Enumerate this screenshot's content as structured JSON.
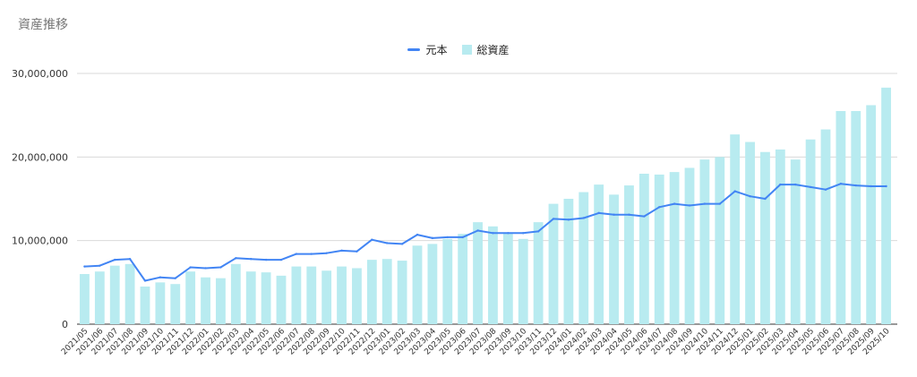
{
  "chart_data": {
    "type": "bar",
    "title": "資産推移",
    "legend_position": "top",
    "grid": true,
    "ylim": [
      0,
      30000000
    ],
    "y_ticks": [
      "0",
      "10,000,000",
      "20,000,000",
      "30,000,000"
    ],
    "categories": [
      "2021/05",
      "2021/06",
      "2021/07",
      "2021/08",
      "2021/09",
      "2021/10",
      "2021/11",
      "2021/12",
      "2022/01",
      "2022/02",
      "2022/03",
      "2022/04",
      "2022/05",
      "2022/06",
      "2022/07",
      "2022/08",
      "2022/09",
      "2022/10",
      "2022/11",
      "2022/12",
      "2023/01",
      "2023/02",
      "2023/03",
      "2023/04",
      "2023/05",
      "2023/06",
      "2023/07",
      "2023/08",
      "2023/09",
      "2023/10",
      "2023/11",
      "2023/12",
      "2024/01",
      "2024/02",
      "2024/03",
      "2024/04",
      "2024/05",
      "2024/06",
      "2024/07",
      "2024/08",
      "2024/09",
      "2024/10",
      "2024/11",
      "2024/12",
      "2025/01",
      "2025/02",
      "2025/03",
      "2025/04",
      "2025/05",
      "2025/06",
      "2025/07",
      "2025/08",
      "2025/09",
      "2025/10"
    ],
    "series": [
      {
        "name": "元本",
        "kind": "line",
        "color": "#4285f4",
        "values": [
          6900000,
          7000000,
          7700000,
          7800000,
          5200000,
          5600000,
          5500000,
          6800000,
          6700000,
          6800000,
          7900000,
          7800000,
          7700000,
          7700000,
          8400000,
          8400000,
          8500000,
          8800000,
          8700000,
          10100000,
          9700000,
          9600000,
          10700000,
          10300000,
          10400000,
          10400000,
          11200000,
          10900000,
          10900000,
          10900000,
          11100000,
          12600000,
          12500000,
          12700000,
          13300000,
          13100000,
          13100000,
          12900000,
          14000000,
          14400000,
          14200000,
          14400000,
          14400000,
          15900000,
          15300000,
          15000000,
          16700000,
          16700000,
          16400000,
          16100000,
          16800000,
          16600000,
          16500000,
          16500000
        ]
      },
      {
        "name": "総資産",
        "kind": "bar",
        "color": "#b8ebf0",
        "values": [
          6000000,
          6300000,
          7000000,
          7200000,
          4500000,
          5000000,
          4800000,
          6300000,
          5600000,
          5500000,
          7200000,
          6300000,
          6200000,
          5800000,
          6900000,
          6900000,
          6400000,
          6900000,
          6700000,
          7700000,
          7800000,
          7600000,
          9400000,
          9600000,
          10200000,
          10800000,
          12200000,
          11700000,
          10900000,
          10200000,
          12200000,
          14400000,
          15000000,
          15800000,
          16700000,
          15500000,
          16600000,
          18000000,
          17900000,
          18200000,
          18700000,
          19700000,
          20000000,
          22700000,
          21800000,
          20600000,
          20900000,
          19700000,
          22100000,
          23300000,
          25500000,
          25500000,
          26200000,
          28300000
        ]
      }
    ]
  }
}
